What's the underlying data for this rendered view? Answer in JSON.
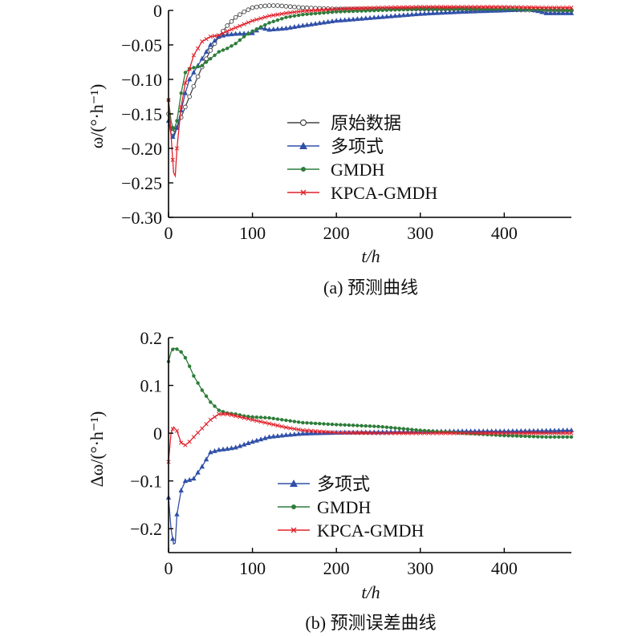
{
  "colors": {
    "原始数据": "#444444",
    "多项式": "#3050a8",
    "GMDH": "#2e7d3a",
    "KPCA-GMDH": "#e0202a",
    "axis": "#000000"
  },
  "chart_data": [
    {
      "type": "line",
      "caption": "(a) 预测曲线",
      "xlabel": "t/h",
      "ylabel": "ω/(°·h⁻¹)",
      "xlim": [
        0,
        480
      ],
      "ylim": [
        -0.3,
        0
      ],
      "xticks": [
        0,
        100,
        200,
        300,
        400
      ],
      "xtick_labels": [
        "0",
        "100",
        "200",
        "300",
        "400"
      ],
      "yticks": [
        0,
        -0.05,
        -0.1,
        -0.15,
        -0.2,
        -0.25,
        -0.3
      ],
      "ytick_labels": [
        "0",
        "−0.05",
        "−0.10",
        "−0.15",
        "−0.20",
        "−0.25",
        "−0.30"
      ],
      "legend": "center-right",
      "legend_entries": [
        "原始数据",
        "多项式",
        "GMDH",
        "KPCA-GMDH"
      ],
      "series": [
        {
          "name": "原始数据",
          "marker": "circle",
          "x": [
            0,
            3,
            6,
            10,
            15,
            20,
            25,
            30,
            40,
            50,
            60,
            70,
            80,
            90,
            100,
            110,
            120,
            130,
            140,
            150,
            160,
            180,
            200,
            250,
            300,
            350,
            400,
            450,
            480
          ],
          "y": [
            -0.15,
            -0.17,
            -0.18,
            -0.17,
            -0.155,
            -0.14,
            -0.125,
            -0.11,
            -0.082,
            -0.058,
            -0.038,
            -0.022,
            -0.01,
            -0.002,
            0.004,
            0.006,
            0.007,
            0.007,
            0.006,
            0.005,
            0.004,
            0.003,
            0.002,
            0.002,
            0.002,
            0.002,
            0.001,
            0.0,
            0.0
          ]
        },
        {
          "name": "多项式",
          "marker": "triangle",
          "x": [
            0,
            3,
            6,
            10,
            15,
            20,
            25,
            30,
            40,
            50,
            60,
            70,
            80,
            100,
            110,
            120,
            140,
            160,
            200,
            250,
            300,
            350,
            400,
            430,
            450,
            480
          ],
          "y": [
            -0.16,
            -0.18,
            -0.185,
            -0.17,
            -0.145,
            -0.12,
            -0.1,
            -0.09,
            -0.07,
            -0.05,
            -0.038,
            -0.035,
            -0.034,
            -0.033,
            -0.025,
            -0.028,
            -0.026,
            -0.022,
            -0.015,
            -0.01,
            -0.005,
            -0.002,
            0.0,
            0.002,
            -0.004,
            -0.004
          ]
        },
        {
          "name": "GMDH",
          "marker": "dot",
          "x": [
            0,
            3,
            6,
            10,
            15,
            20,
            25,
            30,
            40,
            50,
            60,
            70,
            80,
            90,
            100,
            110,
            120,
            140,
            160,
            200,
            250,
            300,
            350,
            400,
            450,
            480
          ],
          "y": [
            -0.13,
            -0.16,
            -0.175,
            -0.16,
            -0.12,
            -0.09,
            -0.085,
            -0.083,
            -0.08,
            -0.07,
            -0.06,
            -0.055,
            -0.048,
            -0.038,
            -0.03,
            -0.024,
            -0.018,
            -0.01,
            -0.006,
            -0.002,
            0.0,
            0.002,
            0.002,
            0.002,
            0.001,
            0.0
          ]
        },
        {
          "name": "KPCA-GMDH",
          "marker": "cross",
          "x": [
            0,
            3,
            6,
            8,
            10,
            15,
            20,
            25,
            30,
            40,
            50,
            60,
            70,
            80,
            100,
            120,
            140,
            160,
            200,
            250,
            300,
            350,
            400,
            450,
            480
          ],
          "y": [
            -0.13,
            -0.18,
            -0.235,
            -0.24,
            -0.2,
            -0.14,
            -0.105,
            -0.085,
            -0.065,
            -0.045,
            -0.038,
            -0.036,
            -0.03,
            -0.025,
            -0.015,
            -0.008,
            -0.004,
            -0.001,
            0.002,
            0.004,
            0.005,
            0.005,
            0.005,
            0.004,
            0.004
          ]
        }
      ]
    },
    {
      "type": "line",
      "caption": "(b) 预测误差曲线",
      "xlabel": "t/h",
      "ylabel": "Δω/(°·h⁻¹)",
      "xlim": [
        0,
        480
      ],
      "ylim": [
        -0.25,
        0.2
      ],
      "xticks": [
        0,
        100,
        200,
        300,
        400
      ],
      "xtick_labels": [
        "0",
        "100",
        "200",
        "300",
        "400"
      ],
      "yticks": [
        0.2,
        0.1,
        0,
        -0.1,
        -0.2
      ],
      "ytick_labels": [
        "0.2",
        "0.1",
        "0",
        "−0.1",
        "−0.2"
      ],
      "legend": "center-right",
      "legend_entries": [
        "多项式",
        "GMDH",
        "KPCA-GMDH"
      ],
      "series": [
        {
          "name": "多项式",
          "marker": "triangle",
          "x": [
            0,
            3,
            6,
            8,
            10,
            15,
            20,
            25,
            30,
            40,
            50,
            60,
            70,
            80,
            100,
            120,
            140,
            160,
            200,
            250,
            300,
            350,
            400,
            450,
            480
          ],
          "y": [
            -0.135,
            -0.2,
            -0.232,
            -0.23,
            -0.17,
            -0.12,
            -0.1,
            -0.098,
            -0.095,
            -0.07,
            -0.04,
            -0.035,
            -0.033,
            -0.03,
            -0.018,
            -0.008,
            -0.004,
            -0.001,
            0.001,
            0.002,
            0.003,
            0.004,
            0.004,
            0.005,
            0.006
          ]
        },
        {
          "name": "GMDH",
          "marker": "dot",
          "x": [
            0,
            3,
            6,
            10,
            15,
            20,
            25,
            30,
            40,
            50,
            60,
            70,
            80,
            90,
            100,
            120,
            140,
            160,
            200,
            250,
            300,
            350,
            400,
            450,
            480
          ],
          "y": [
            0.15,
            0.17,
            0.178,
            0.176,
            0.17,
            0.158,
            0.14,
            0.12,
            0.09,
            0.065,
            0.048,
            0.042,
            0.04,
            0.036,
            0.034,
            0.032,
            0.027,
            0.022,
            0.018,
            0.014,
            0.006,
            0.0,
            -0.005,
            -0.008,
            -0.008
          ]
        },
        {
          "name": "KPCA-GMDH",
          "marker": "cross",
          "x": [
            0,
            3,
            6,
            10,
            15,
            20,
            25,
            30,
            40,
            50,
            60,
            70,
            80,
            100,
            120,
            140,
            160,
            200,
            250,
            300,
            350,
            400,
            450,
            480
          ],
          "y": [
            -0.06,
            0.0,
            0.013,
            0.005,
            -0.02,
            -0.025,
            -0.018,
            -0.008,
            0.01,
            0.028,
            0.04,
            0.04,
            0.036,
            0.028,
            0.02,
            0.012,
            0.006,
            0.001,
            0.0,
            0.0,
            0.0,
            0.0,
            0.0,
            0.0
          ]
        }
      ]
    }
  ]
}
